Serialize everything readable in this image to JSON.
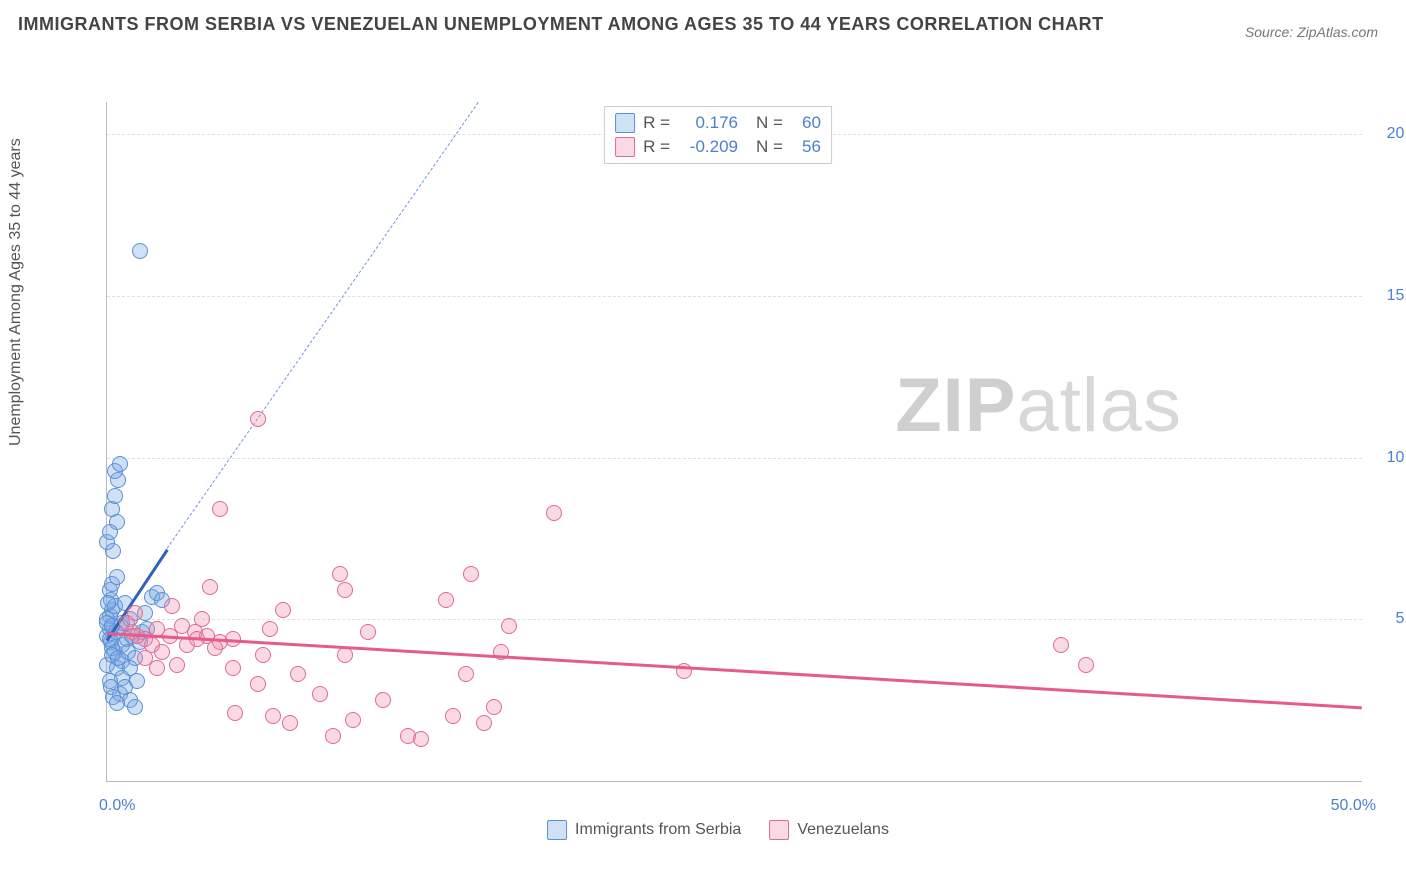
{
  "title": "IMMIGRANTS FROM SERBIA VS VENEZUELAN UNEMPLOYMENT AMONG AGES 35 TO 44 YEARS CORRELATION CHART",
  "source": "Source: ZipAtlas.com",
  "ylabel": "Unemployment Among Ages 35 to 44 years",
  "watermark_zip": "ZIP",
  "watermark_atlas": "atlas",
  "chart": {
    "type": "scatter",
    "xlim": [
      0,
      50
    ],
    "ylim": [
      0,
      21
    ],
    "grid_lines_y": [
      5,
      10,
      15,
      20
    ],
    "yticks": [
      {
        "v": 5,
        "label": "5.0%"
      },
      {
        "v": 10,
        "label": "10.0%"
      },
      {
        "v": 15,
        "label": "15.0%"
      },
      {
        "v": 20,
        "label": "20.0%"
      }
    ],
    "xticks": [
      {
        "v": 0,
        "label": "0.0%"
      },
      {
        "v": 50,
        "label": "50.0%"
      }
    ],
    "marker_radius": 8,
    "marker_stroke_width": 1.5,
    "grid_color": "#e0e0e0",
    "axis_color": "#bbbbbb",
    "tick_color": "#4a7fd6",
    "background_color": "#ffffff"
  },
  "series": [
    {
      "name": "Immigrants from Serbia",
      "fill": "rgba(120,165,225,0.35)",
      "stroke": "#5b8fd6",
      "r_value": "0.176",
      "n_value": "60",
      "trend": {
        "x1": 0,
        "y1": 4.4,
        "x2": 2.4,
        "y2": 7.2,
        "solid_color": "#2f63b8",
        "width": 3
      },
      "trend_dashed": {
        "x1": 2.4,
        "y1": 7.2,
        "x2": 14.8,
        "y2": 21.0,
        "color": "#6d97d8",
        "width": 1.5
      },
      "points": [
        [
          0.0,
          4.5
        ],
        [
          0.1,
          4.7
        ],
        [
          0.15,
          4.3
        ],
        [
          0.1,
          5.1
        ],
        [
          0.2,
          5.3
        ],
        [
          0.15,
          5.6
        ],
        [
          0.1,
          5.9
        ],
        [
          0.2,
          6.1
        ],
        [
          0.0,
          3.6
        ],
        [
          0.4,
          3.5
        ],
        [
          0.6,
          3.2
        ],
        [
          0.5,
          2.7
        ],
        [
          0.9,
          2.5
        ],
        [
          1.1,
          2.3
        ],
        [
          0.3,
          4.0
        ],
        [
          0.6,
          4.2
        ],
        [
          0.8,
          4.4
        ],
        [
          1.0,
          4.5
        ],
        [
          1.3,
          4.3
        ],
        [
          0.6,
          4.9
        ],
        [
          0.9,
          5.0
        ],
        [
          0.3,
          5.4
        ],
        [
          0.4,
          6.3
        ],
        [
          0.25,
          7.1
        ],
        [
          0.0,
          7.4
        ],
        [
          0.1,
          7.7
        ],
        [
          0.4,
          8.0
        ],
        [
          0.2,
          8.4
        ],
        [
          0.3,
          8.8
        ],
        [
          0.45,
          9.3
        ],
        [
          0.3,
          9.6
        ],
        [
          0.5,
          9.8
        ],
        [
          1.8,
          5.7
        ],
        [
          2.0,
          5.8
        ],
        [
          0.2,
          4.1
        ],
        [
          0.35,
          4.6
        ],
        [
          0.55,
          4.8
        ],
        [
          0.2,
          3.9
        ],
        [
          0.6,
          3.7
        ],
        [
          0.1,
          3.1
        ],
        [
          0.15,
          2.9
        ],
        [
          0.25,
          2.6
        ],
        [
          0.4,
          2.4
        ],
        [
          0.7,
          2.9
        ],
        [
          0.45,
          3.8
        ],
        [
          0.85,
          4.0
        ],
        [
          0.0,
          5.0
        ],
        [
          0.05,
          5.5
        ],
        [
          0.0,
          4.9
        ],
        [
          0.1,
          4.4
        ],
        [
          1.3,
          16.4
        ],
        [
          0.2,
          4.8
        ],
        [
          1.4,
          4.6
        ],
        [
          1.6,
          4.7
        ],
        [
          2.2,
          5.6
        ],
        [
          1.1,
          3.8
        ],
        [
          0.7,
          5.5
        ],
        [
          0.9,
          3.5
        ],
        [
          1.2,
          3.1
        ],
        [
          1.5,
          5.2
        ]
      ]
    },
    {
      "name": "Venezuelans",
      "fill": "rgba(235,140,170,0.32)",
      "stroke": "#e06a96",
      "r_value": "-0.209",
      "n_value": "56",
      "trend": {
        "x1": 0,
        "y1": 4.6,
        "x2": 50,
        "y2": 2.3,
        "solid_color": "#e75a8c",
        "width": 3
      },
      "points": [
        [
          1.0,
          4.6
        ],
        [
          1.5,
          4.4
        ],
        [
          2.0,
          4.7
        ],
        [
          1.8,
          4.2
        ],
        [
          2.5,
          4.5
        ],
        [
          3.0,
          4.8
        ],
        [
          2.2,
          4.0
        ],
        [
          3.5,
          4.6
        ],
        [
          4.0,
          4.5
        ],
        [
          4.5,
          4.3
        ],
        [
          0.8,
          4.9
        ],
        [
          1.2,
          4.5
        ],
        [
          1.5,
          3.8
        ],
        [
          2.0,
          3.5
        ],
        [
          2.8,
          3.6
        ],
        [
          3.2,
          4.2
        ],
        [
          3.6,
          4.4
        ],
        [
          4.3,
          4.1
        ],
        [
          5.0,
          4.4
        ],
        [
          5.0,
          3.5
        ],
        [
          5.1,
          2.1
        ],
        [
          6.0,
          3.0
        ],
        [
          6.6,
          2.0
        ],
        [
          7.3,
          1.8
        ],
        [
          7.6,
          3.3
        ],
        [
          8.5,
          2.7
        ],
        [
          9.0,
          1.4
        ],
        [
          9.3,
          6.4
        ],
        [
          9.5,
          3.9
        ],
        [
          9.5,
          5.9
        ],
        [
          9.8,
          1.9
        ],
        [
          10.4,
          4.6
        ],
        [
          11.0,
          2.5
        ],
        [
          12.0,
          1.4
        ],
        [
          12.5,
          1.3
        ],
        [
          13.5,
          5.6
        ],
        [
          13.8,
          2.0
        ],
        [
          14.3,
          3.3
        ],
        [
          14.5,
          6.4
        ],
        [
          15.0,
          1.8
        ],
        [
          15.4,
          2.3
        ],
        [
          15.7,
          4.0
        ],
        [
          16.0,
          4.8
        ],
        [
          17.8,
          8.3
        ],
        [
          6.0,
          11.2
        ],
        [
          4.5,
          8.4
        ],
        [
          23.0,
          3.4
        ],
        [
          38.0,
          4.2
        ],
        [
          39.0,
          3.6
        ],
        [
          1.1,
          5.2
        ],
        [
          2.6,
          5.4
        ],
        [
          3.8,
          5.0
        ],
        [
          4.1,
          6.0
        ],
        [
          6.5,
          4.7
        ],
        [
          7.0,
          5.3
        ],
        [
          6.2,
          3.9
        ]
      ]
    }
  ],
  "legend": {
    "stat_labels": {
      "r": "R =",
      "n": "N ="
    }
  }
}
